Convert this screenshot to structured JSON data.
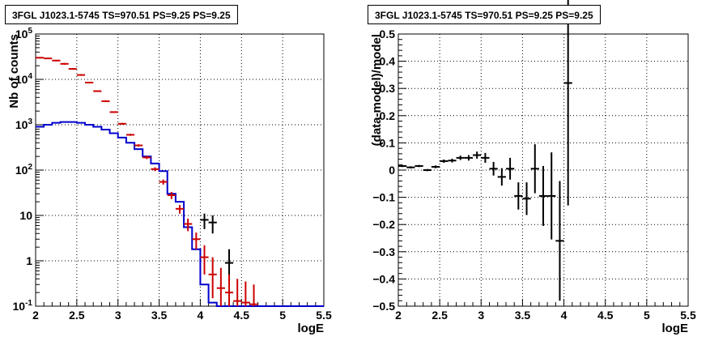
{
  "panels": [
    {
      "title": "3FGL J1023.1-5745 TS=970.51 PS=9.25 PS=9.25"
    },
    {
      "title": "3FGL J1023.1-5745 TS=970.51 PS=9.25 PS=9.25"
    }
  ],
  "chart_data": [
    {
      "type": "line",
      "title": "3FGL J1023.1-5745 TS=970.51 PS=9.25 PS=9.25",
      "xlabel": "logE",
      "ylabel": "Nb of counts",
      "xlim": [
        2,
        5.5
      ],
      "ylim": [
        0.1,
        100000
      ],
      "yscale": "log",
      "grid": true,
      "xticks": [
        "2",
        "2.5",
        "3",
        "3.5",
        "4",
        "4.5",
        "5",
        "5.5"
      ],
      "yticks": [
        "10^-1",
        "1",
        "10",
        "10^2",
        "10^3",
        "10^4",
        "10^5"
      ],
      "bin_edges": [
        2.0,
        2.1,
        2.2,
        2.3,
        2.4,
        2.5,
        2.6,
        2.7,
        2.8,
        2.9,
        3.0,
        3.1,
        3.2,
        3.3,
        3.4,
        3.5,
        3.6,
        3.7,
        3.8,
        3.9,
        4.0,
        4.1,
        4.2,
        4.3,
        4.4,
        4.5,
        4.6,
        4.7,
        4.8,
        4.9,
        5.0,
        5.1,
        5.2,
        5.3,
        5.4,
        5.5
      ],
      "series": [
        {
          "kind": "step",
          "color": "#0000cc",
          "values": [
            900,
            1000,
            1100,
            1150,
            1150,
            1100,
            1000,
            900,
            780,
            650,
            520,
            400,
            290,
            200,
            140,
            95,
            30,
            20,
            5.5,
            1.8,
            0.3,
            0.12,
            0.08,
            0.08,
            0.08,
            0.08,
            0.1,
            0.1,
            0.1,
            0.1,
            0.1,
            0.1,
            0.1,
            0.1,
            0.1
          ]
        },
        {
          "kind": "points",
          "color": "#cc0000",
          "x": [
            2.05,
            2.15,
            2.25,
            2.35,
            2.45,
            2.55,
            2.65,
            2.75,
            2.85,
            2.95,
            3.05,
            3.15,
            3.25,
            3.35,
            3.45,
            3.55,
            3.65,
            3.75,
            3.85,
            3.95,
            4.05,
            4.15,
            4.25,
            4.35,
            4.45,
            4.55,
            4.65
          ],
          "y": [
            30000,
            29000,
            26000,
            22000,
            17000,
            12500,
            8500,
            5500,
            3300,
            1900,
            1050,
            600,
            350,
            190,
            105,
            55,
            28,
            14,
            6.5,
            3,
            1.2,
            0.5,
            0.25,
            0.2,
            0.13,
            0.12,
            0.11
          ],
          "y_low": [
            29000,
            28000,
            25000,
            21000,
            16300,
            12000,
            8150,
            5300,
            3150,
            1830,
            1000,
            570,
            330,
            175,
            95,
            48,
            23,
            11,
            4.5,
            1.8,
            0.5,
            0.15,
            0.1,
            0.1,
            0.1,
            0.1,
            0.1
          ],
          "y_high": [
            31000,
            30000,
            27000,
            23000,
            17700,
            13000,
            8850,
            5700,
            3450,
            1970,
            1100,
            630,
            370,
            205,
            115,
            62,
            33,
            17,
            8.5,
            4.2,
            2.2,
            1.2,
            0.7,
            0.5,
            0.4,
            0.35,
            0.3
          ]
        },
        {
          "kind": "points",
          "color": "#000000",
          "x": [
            4.05,
            4.15,
            4.35
          ],
          "y": [
            8,
            7,
            0.9
          ],
          "y_low": [
            5,
            4,
            0.35
          ],
          "y_high": [
            11,
            10,
            1.8
          ]
        }
      ]
    },
    {
      "type": "scatter",
      "title": "3FGL J1023.1-5745 TS=970.51 PS=9.25 PS=9.25",
      "xlabel": "logE",
      "ylabel": "(data-model)/model",
      "xlim": [
        2,
        5.5
      ],
      "ylim": [
        -0.5,
        0.5
      ],
      "grid": true,
      "xticks": [
        "2",
        "2.5",
        "3",
        "3.5",
        "4",
        "4.5",
        "5",
        "5.5"
      ],
      "yticks": [
        "−0.5",
        "−0.4",
        "−0.3",
        "−0.2",
        "−0.1",
        "0",
        "0.1",
        "0.2",
        "0.3",
        "0.4",
        "0.5"
      ],
      "series": [
        {
          "color": "#000000",
          "x": [
            2.05,
            2.15,
            2.25,
            2.35,
            2.45,
            2.55,
            2.65,
            2.75,
            2.85,
            2.95,
            3.05,
            3.15,
            3.25,
            3.35,
            3.45,
            3.55,
            3.65,
            3.75,
            3.85,
            3.95,
            4.05
          ],
          "y": [
            0.015,
            0.01,
            0.015,
            0.0,
            0.012,
            0.033,
            0.035,
            0.045,
            0.045,
            0.055,
            0.045,
            0.005,
            -0.025,
            0.005,
            -0.095,
            -0.105,
            0.005,
            -0.095,
            -0.095,
            -0.26,
            0.32
          ],
          "err": [
            0.004,
            0.004,
            0.004,
            0.004,
            0.005,
            0.006,
            0.007,
            0.008,
            0.01,
            0.013,
            0.018,
            0.025,
            0.032,
            0.04,
            0.05,
            0.06,
            0.09,
            0.11,
            0.16,
            0.22,
            0.45
          ]
        }
      ]
    }
  ]
}
